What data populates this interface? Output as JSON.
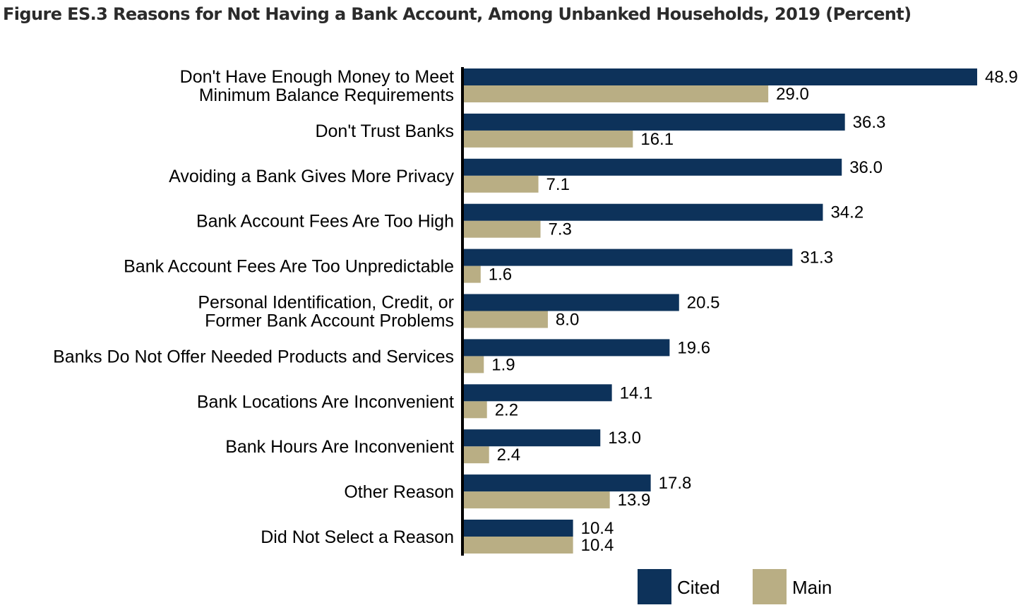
{
  "title": "Figure ES.3 Reasons for Not Having a Bank Account, Among Unbanked Households, 2019 (Percent)",
  "colors": {
    "cited": "#0d325a",
    "main": "#b9ae84",
    "axis": "#000000"
  },
  "chart_data": {
    "type": "bar",
    "orientation": "horizontal",
    "categories": [
      [
        "Don't Have Enough Money to Meet",
        "Minimum Balance Requirements"
      ],
      [
        "Don't Trust Banks"
      ],
      [
        "Avoiding a Bank Gives More Privacy"
      ],
      [
        "Bank Account Fees Are Too High"
      ],
      [
        "Bank Account Fees Are Too Unpredictable"
      ],
      [
        "Personal Identification, Credit, or",
        "Former Bank Account Problems"
      ],
      [
        "Banks Do Not Offer Needed Products and Services"
      ],
      [
        "Bank Locations Are Inconvenient"
      ],
      [
        "Bank Hours Are Inconvenient"
      ],
      [
        "Other Reason"
      ],
      [
        "Did Not Select a Reason"
      ]
    ],
    "series": [
      {
        "name": "Cited",
        "values": [
          48.9,
          36.3,
          36.0,
          34.2,
          31.3,
          20.5,
          19.6,
          14.1,
          13.0,
          17.8,
          10.4
        ],
        "labels": [
          "48.9",
          "36.3",
          "36.0",
          "34.2",
          "31.3",
          "20.5",
          "19.6",
          "14.1",
          "13.0",
          "17.8",
          "10.4"
        ]
      },
      {
        "name": "Main",
        "values": [
          29.0,
          16.1,
          7.1,
          7.3,
          1.6,
          8.0,
          1.9,
          2.2,
          2.4,
          13.9,
          10.4
        ],
        "labels": [
          "29.0",
          "16.1",
          "7.1",
          "7.3",
          "1.6",
          "8.0",
          "1.9",
          "2.2",
          "2.4",
          "13.9",
          "10.4"
        ]
      }
    ],
    "xlim": [
      0,
      48.9
    ],
    "grid": false,
    "legend": "bottom"
  }
}
